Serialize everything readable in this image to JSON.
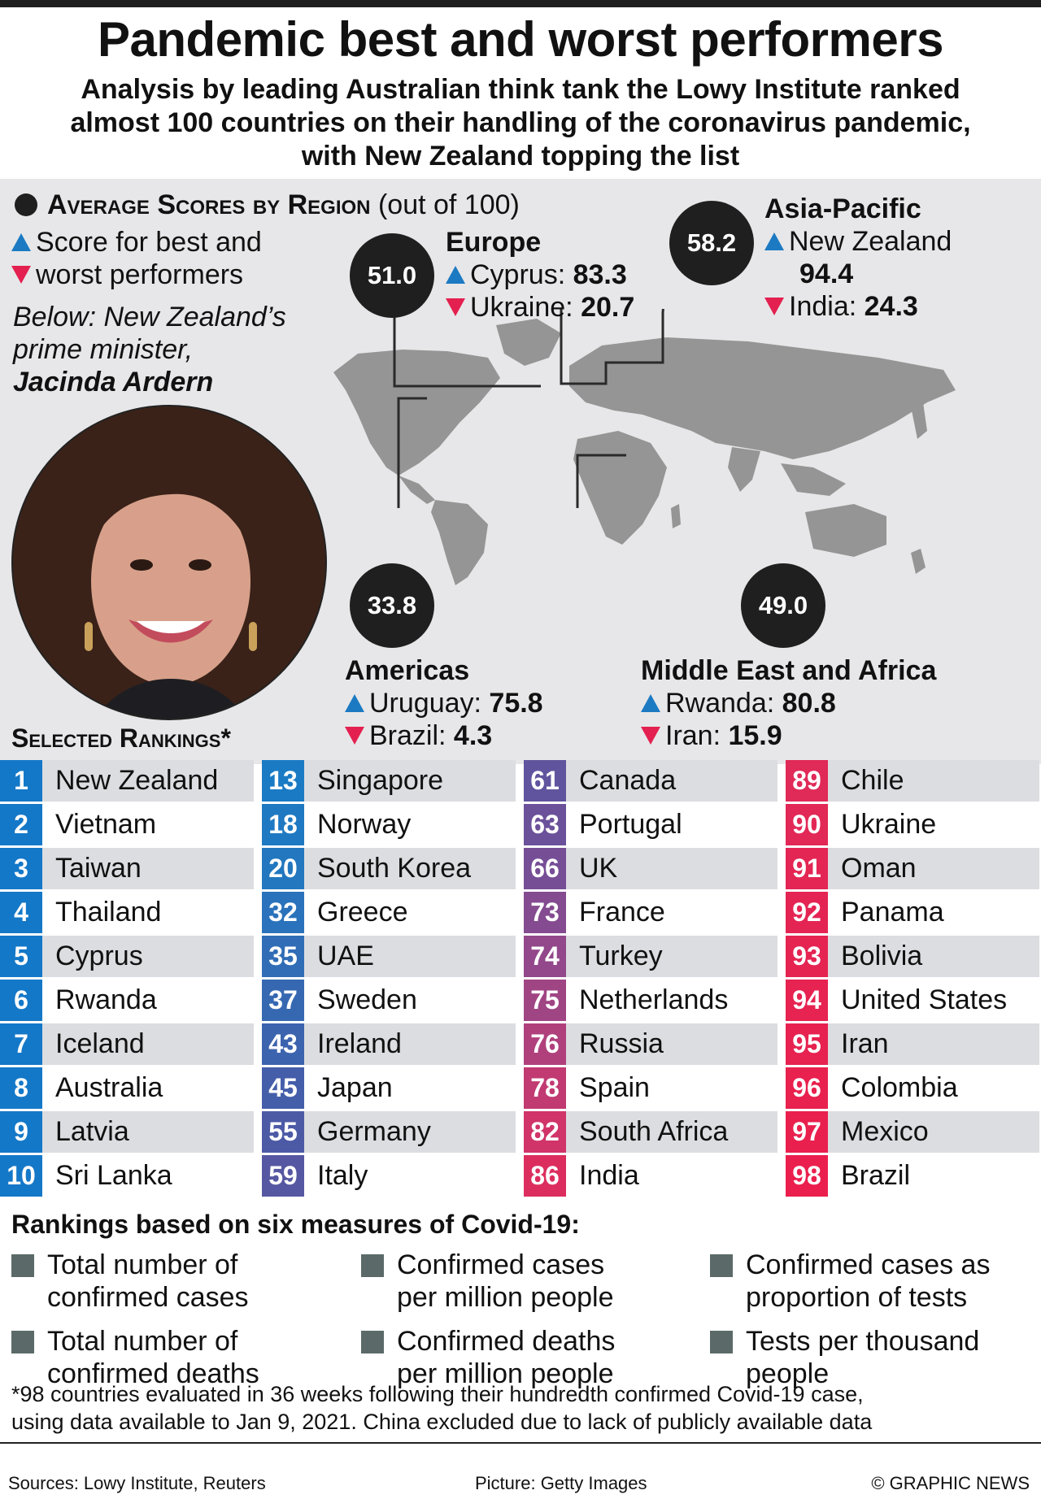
{
  "header": {
    "title": "Pandemic best and worst performers",
    "subtitle_lines": [
      "Analysis by leading Australian think tank the Lowy Institute ranked",
      "almost 100 countries on their handling of the coronavirus pandemic,",
      "with New Zealand topping the list"
    ]
  },
  "legend": {
    "avg_label": "Average Scores by Region",
    "avg_suffix": "(out of 100)",
    "best_worst_line1": "Score for best and",
    "best_worst_line2": "worst performers",
    "caption_line1": "Below: New Zealand’s",
    "caption_line2": "prime minister,",
    "caption_name": "Jacinda Ardern"
  },
  "regions": {
    "europe": {
      "name": "Europe",
      "score": "51.0",
      "best": "Cyprus: ",
      "best_val": "83.3",
      "worst": "Ukraine: ",
      "worst_val": "20.7"
    },
    "asia": {
      "name": "Asia-Pacific",
      "score": "58.2",
      "best": "New Zealand",
      "best_val": "94.4",
      "worst": "India: ",
      "worst_val": "24.3"
    },
    "americas": {
      "name": "Americas",
      "score": "33.8",
      "best": "Uruguay: ",
      "best_val": "75.8",
      "worst": "Brazil: ",
      "worst_val": "4.3"
    },
    "mea": {
      "name": "Middle East and Africa",
      "score": "49.0",
      "best": "Rwanda: ",
      "best_val": "80.8",
      "worst": "Iran: ",
      "worst_val": "15.9"
    }
  },
  "rankings_title": "Selected Rankings*",
  "rankings": [
    [
      {
        "rank": "1",
        "country": "New Zealand",
        "color": "#1478c8"
      },
      {
        "rank": "2",
        "country": "Vietnam",
        "color": "#1478c8"
      },
      {
        "rank": "3",
        "country": "Taiwan",
        "color": "#1478c8"
      },
      {
        "rank": "4",
        "country": "Thailand",
        "color": "#1478c8"
      },
      {
        "rank": "5",
        "country": "Cyprus",
        "color": "#1478c8"
      },
      {
        "rank": "6",
        "country": "Rwanda",
        "color": "#1478c8"
      },
      {
        "rank": "7",
        "country": "Iceland",
        "color": "#1478c8"
      },
      {
        "rank": "8",
        "country": "Australia",
        "color": "#1478c8"
      },
      {
        "rank": "9",
        "country": "Latvia",
        "color": "#1478c8"
      },
      {
        "rank": "10",
        "country": "Sri Lanka",
        "color": "#1478c8"
      }
    ],
    [
      {
        "rank": "13",
        "country": "Singapore",
        "color": "#1a7bc4"
      },
      {
        "rank": "18",
        "country": "Norway",
        "color": "#1e79c2"
      },
      {
        "rank": "20",
        "country": "South Korea",
        "color": "#2277bf"
      },
      {
        "rank": "32",
        "country": "Greece",
        "color": "#2a72bb"
      },
      {
        "rank": "35",
        "country": "UAE",
        "color": "#306db6"
      },
      {
        "rank": "37",
        "country": "Sweden",
        "color": "#3668b2"
      },
      {
        "rank": "43",
        "country": "Ireland",
        "color": "#3c63ae"
      },
      {
        "rank": "45",
        "country": "Japan",
        "color": "#445eaa"
      },
      {
        "rank": "55",
        "country": "Germany",
        "color": "#4c5aa6"
      },
      {
        "rank": "59",
        "country": "Italy",
        "color": "#5657a2"
      }
    ],
    [
      {
        "rank": "61",
        "country": "Canada",
        "color": "#61549e"
      },
      {
        "rank": "63",
        "country": "Portugal",
        "color": "#6b519a"
      },
      {
        "rank": "66",
        "country": "UK",
        "color": "#764e96"
      },
      {
        "rank": "73",
        "country": "France",
        "color": "#844b90"
      },
      {
        "rank": "74",
        "country": "Turkey",
        "color": "#92488a"
      },
      {
        "rank": "75",
        "country": "Netherlands",
        "color": "#a04584"
      },
      {
        "rank": "76",
        "country": "Russia",
        "color": "#b0407c"
      },
      {
        "rank": "78",
        "country": "Spain",
        "color": "#c13a72"
      },
      {
        "rank": "82",
        "country": "South Africa",
        "color": "#d03468"
      },
      {
        "rank": "86",
        "country": "India",
        "color": "#dc2e5e"
      }
    ],
    [
      {
        "rank": "89",
        "country": "Chile",
        "color": "#e02a58"
      },
      {
        "rank": "90",
        "country": "Ukraine",
        "color": "#e22856"
      },
      {
        "rank": "91",
        "country": "Oman",
        "color": "#e32654"
      },
      {
        "rank": "92",
        "country": "Panama",
        "color": "#e42553"
      },
      {
        "rank": "93",
        "country": "Bolivia",
        "color": "#e52452"
      },
      {
        "rank": "94",
        "country": "United States",
        "color": "#e62351"
      },
      {
        "rank": "95",
        "country": "Iran",
        "color": "#e72250"
      },
      {
        "rank": "96",
        "country": "Colombia",
        "color": "#e8214f"
      },
      {
        "rank": "97",
        "country": "Mexico",
        "color": "#e9204e"
      },
      {
        "rank": "98",
        "country": "Brazil",
        "color": "#ea1f4d"
      }
    ]
  ],
  "measures": {
    "title": "Rankings based on six measures of Covid-19:",
    "items": [
      {
        "line1": "Total number of",
        "line2": "confirmed cases"
      },
      {
        "line1": "Confirmed cases",
        "line2": "per million people"
      },
      {
        "line1": "Confirmed cases as",
        "line2": "proportion of tests"
      },
      {
        "line1": "Total number of",
        "line2": "confirmed deaths"
      },
      {
        "line1": "Confirmed deaths",
        "line2": "per million people"
      },
      {
        "line1": "Tests per thousand",
        "line2": "people"
      }
    ]
  },
  "footnote": {
    "line1": "*98 countries evaluated in 36 weeks following their hundredth confirmed Covid-19 case,",
    "line2": "using data available to Jan 9, 2021. China excluded due to lack of publicly available data"
  },
  "sources": {
    "sources": "Sources: Lowy Institute, Reuters",
    "picture": "Picture: Getty Images",
    "credit": "© GRAPHIC NEWS"
  },
  "colors": {
    "best": "#1c7ac2",
    "worst": "#e3204f",
    "map_land": "#959595",
    "map_bg": "#e7e7e9"
  }
}
